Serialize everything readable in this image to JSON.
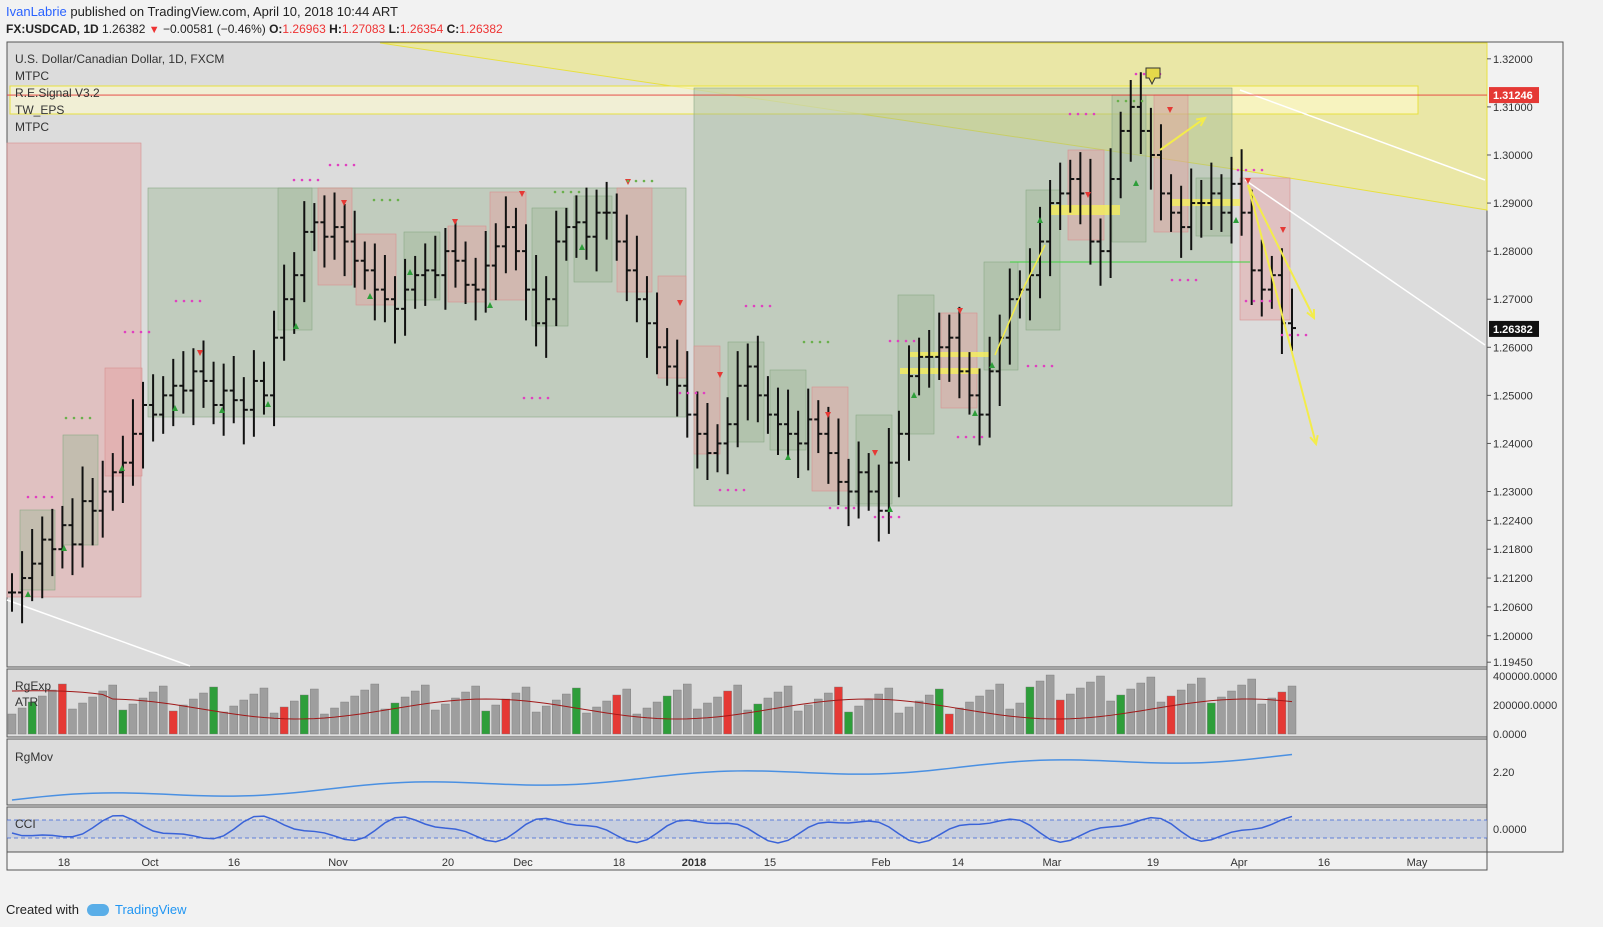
{
  "header": {
    "author": "IvanLabrie",
    "published_text": "published on TradingView.com, April 10, 2018 10:44 ART",
    "symbol": "FX:USDCAD, 1D",
    "last": "1.26382",
    "change": "−0.00581 (−0.46%)",
    "open_label": "O:",
    "open": "1.26963",
    "high_label": "H:",
    "high": "1.27083",
    "low_label": "L:",
    "low": "1.26354",
    "close_label": "C:",
    "close": "1.26382"
  },
  "legend": {
    "title": "U.S. Dollar/Canadian Dollar, 1D, FXCM",
    "ind1": "MTPC",
    "ind2": "R.E.Signal V3.2",
    "ind3": "TW_EPS",
    "ind4": "MTPC",
    "pane2_a": "RgExp",
    "pane2_b": "ATR",
    "pane3": "RgMov",
    "pane4": "CCI"
  },
  "footer": {
    "created_with": "Created with",
    "brand": "TradingView"
  },
  "colors": {
    "up": "#2e9e3a",
    "down": "#e53935",
    "vol": "#9e9e9e",
    "cci": "#3a63d8",
    "rgmov": "#4a90e2",
    "yellow": "#f5f07a",
    "price_tag": "#e53935"
  },
  "chart_data": [
    {
      "type": "ohlc",
      "title": "U.S. Dollar/Canadian Dollar, 1D, FXCM",
      "x_ticks": [
        "18",
        "Oct",
        "16",
        "Nov",
        "20",
        "Dec",
        "18",
        "2018",
        "15",
        "Feb",
        "14",
        "Mar",
        "19",
        "Apr",
        "16",
        "May"
      ],
      "y_ticks": [
        "1.32000",
        "1.31000",
        "1.30000",
        "1.29000",
        "1.28000",
        "1.27000",
        "1.26000",
        "1.25000",
        "1.24000",
        "1.23000",
        "1.22400",
        "1.21800",
        "1.21200",
        "1.20600",
        "1.20000",
        "1.19450"
      ],
      "y_tick_values": [
        1.32,
        1.31,
        1.3,
        1.29,
        1.28,
        1.27,
        1.26,
        1.25,
        1.24,
        1.23,
        1.224,
        1.218,
        1.212,
        1.206,
        1.2,
        1.1945
      ],
      "ylim": [
        1.1935,
        1.3235
      ],
      "price_lines": [
        {
          "label": "1.31246",
          "value": 1.31246
        },
        {
          "label": "1.26382",
          "value": 1.26382
        }
      ],
      "close_approx": [
        1.209,
        1.212,
        1.215,
        1.22,
        1.218,
        1.223,
        1.219,
        1.228,
        1.226,
        1.23,
        1.234,
        1.236,
        1.242,
        1.248,
        1.246,
        1.25,
        1.252,
        1.251,
        1.255,
        1.253,
        1.248,
        1.251,
        1.249,
        1.247,
        1.253,
        1.25,
        1.262,
        1.27,
        1.275,
        1.284,
        1.286,
        1.283,
        1.285,
        1.282,
        1.278,
        1.276,
        1.272,
        1.27,
        1.268,
        1.272,
        1.275,
        1.276,
        1.275,
        1.28,
        1.278,
        1.273,
        1.272,
        1.277,
        1.281,
        1.285,
        1.28,
        1.272,
        1.265,
        1.27,
        1.282,
        1.285,
        1.286,
        1.283,
        1.288,
        1.288,
        1.282,
        1.276,
        1.27,
        1.265,
        1.26,
        1.256,
        1.252,
        1.246,
        1.242,
        1.238,
        1.24,
        1.244,
        1.252,
        1.256,
        1.25,
        1.246,
        1.244,
        1.242,
        1.24,
        1.245,
        1.242,
        1.238,
        1.232,
        1.23,
        1.234,
        1.23,
        1.226,
        1.236,
        1.242,
        1.254,
        1.258,
        1.258,
        1.26,
        1.262,
        1.255,
        1.25,
        1.246,
        1.255,
        1.262,
        1.27,
        1.272,
        1.275,
        1.282,
        1.29,
        1.292,
        1.295,
        1.292,
        1.282,
        1.28,
        1.295,
        1.305,
        1.31,
        1.305,
        1.3,
        1.292,
        1.288,
        1.285,
        1.29,
        1.29,
        1.292,
        1.288,
        1.294,
        1.288,
        1.276,
        1.272,
        1.275,
        1.265,
        1.264
      ]
    },
    {
      "type": "bar",
      "title": "RgExp / ATR",
      "y_ticks": [
        "400000.0000",
        "200000.0000",
        "0.0000"
      ]
    },
    {
      "type": "line",
      "title": "RgMov",
      "y_ticks": [
        "2.20"
      ]
    },
    {
      "type": "line",
      "title": "CCI",
      "y_ticks": [
        "0.0000"
      ]
    }
  ]
}
